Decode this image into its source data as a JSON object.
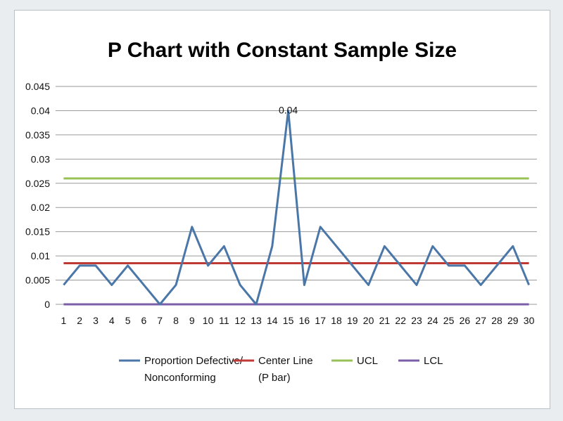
{
  "chart_data": {
    "type": "line",
    "title": "P Chart with Constant Sample Size",
    "xlabel": "",
    "ylabel": "",
    "ylim": [
      0,
      0.045
    ],
    "yticks": [
      "0",
      "0.005",
      "0.01",
      "0.015",
      "0.02",
      "0.025",
      "0.03",
      "0.035",
      "0.04",
      "0.045"
    ],
    "ytick_values": [
      0,
      0.005,
      0.01,
      0.015,
      0.02,
      0.025,
      0.03,
      0.035,
      0.04,
      0.045
    ],
    "categories": [
      "1",
      "2",
      "3",
      "4",
      "5",
      "6",
      "7",
      "8",
      "9",
      "10",
      "11",
      "12",
      "13",
      "14",
      "15",
      "16",
      "17",
      "18",
      "19",
      "20",
      "21",
      "22",
      "23",
      "24",
      "25",
      "26",
      "27",
      "28",
      "29",
      "30"
    ],
    "grid": true,
    "legend_position": "bottom",
    "series": [
      {
        "name_lines": [
          "Proportion Defective/",
          "Nonconforming"
        ],
        "color": "#4a76a8",
        "values": [
          0.004,
          0.008,
          0.008,
          0.004,
          0.008,
          0.004,
          0.0,
          0.004,
          0.016,
          0.008,
          0.012,
          0.004,
          0.0,
          0.012,
          0.04,
          0.004,
          0.016,
          0.012,
          0.008,
          0.004,
          0.012,
          0.008,
          0.004,
          0.012,
          0.008,
          0.008,
          0.004,
          0.008,
          0.012,
          0.004
        ]
      },
      {
        "name_lines": [
          "Center Line",
          "(P bar)"
        ],
        "color": "#bf3a35",
        "values": [
          0.0085,
          0.0085,
          0.0085,
          0.0085,
          0.0085,
          0.0085,
          0.0085,
          0.0085,
          0.0085,
          0.0085,
          0.0085,
          0.0085,
          0.0085,
          0.0085,
          0.0085,
          0.0085,
          0.0085,
          0.0085,
          0.0085,
          0.0085,
          0.0085,
          0.0085,
          0.0085,
          0.0085,
          0.0085,
          0.0085,
          0.0085,
          0.0085,
          0.0085,
          0.0085
        ]
      },
      {
        "name_lines": [
          "UCL"
        ],
        "color": "#98c257",
        "values": [
          0.026,
          0.026,
          0.026,
          0.026,
          0.026,
          0.026,
          0.026,
          0.026,
          0.026,
          0.026,
          0.026,
          0.026,
          0.026,
          0.026,
          0.026,
          0.026,
          0.026,
          0.026,
          0.026,
          0.026,
          0.026,
          0.026,
          0.026,
          0.026,
          0.026,
          0.026,
          0.026,
          0.026,
          0.026,
          0.026
        ]
      },
      {
        "name_lines": [
          "LCL"
        ],
        "color": "#7b5ea7",
        "values": [
          0,
          0,
          0,
          0,
          0,
          0,
          0,
          0,
          0,
          0,
          0,
          0,
          0,
          0,
          0,
          0,
          0,
          0,
          0,
          0,
          0,
          0,
          0,
          0,
          0,
          0,
          0,
          0,
          0,
          0
        ]
      }
    ],
    "annotations": [
      {
        "category": "15",
        "value": 0.04,
        "text": "0.04"
      }
    ]
  }
}
